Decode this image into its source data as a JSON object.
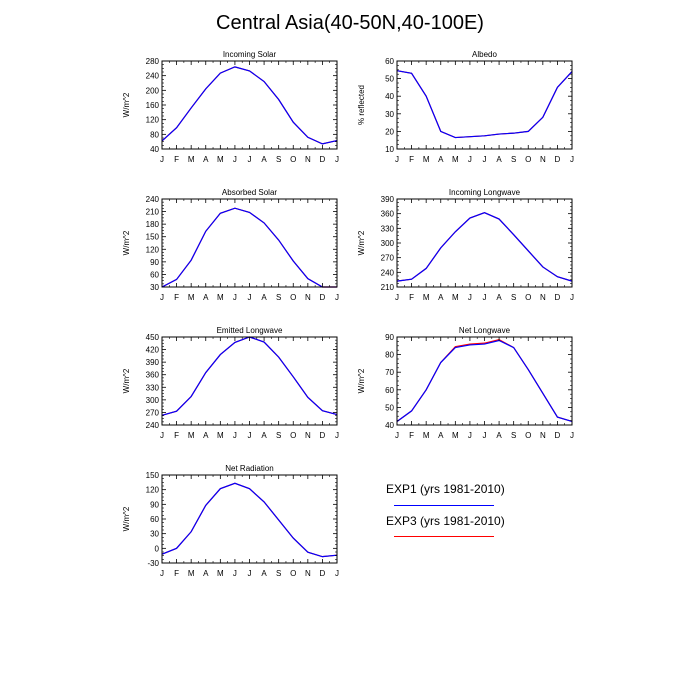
{
  "title": "Central Asia(40-50N,40-100E)",
  "months": [
    "J",
    "F",
    "M",
    "A",
    "M",
    "J",
    "J",
    "A",
    "S",
    "O",
    "N",
    "D",
    "J"
  ],
  "legend": {
    "items": [
      {
        "label": "EXP1 (yrs 1981-2010)",
        "color": "#0000ff"
      },
      {
        "label": "EXP3 (yrs 1981-2010)",
        "color": "#ff0000"
      }
    ]
  },
  "chart_data": [
    {
      "type": "line",
      "title": "Incoming Solar",
      "ylabel": "W/m^2",
      "ylim": [
        40,
        280
      ],
      "yticks": [
        40,
        80,
        120,
        160,
        200,
        240,
        280
      ],
      "series": [
        {
          "name": "EXP1 (yrs 1981-2010)",
          "values": [
            62,
            98,
            152,
            204,
            247,
            264,
            253,
            224,
            175,
            113,
            72,
            54,
            63
          ]
        },
        {
          "name": "EXP3 (yrs 1981-2010)",
          "values": [
            62,
            98,
            152,
            204,
            247,
            264,
            253,
            224,
            175,
            113,
            72,
            54,
            63
          ]
        }
      ]
    },
    {
      "type": "line",
      "title": "Albedo",
      "ylabel": "% reflected",
      "ylim": [
        10,
        60
      ],
      "yticks": [
        10,
        20,
        30,
        40,
        50,
        60
      ],
      "series": [
        {
          "name": "EXP1 (yrs 1981-2010)",
          "values": [
            54.5,
            53,
            40,
            20,
            16.5,
            17,
            17.5,
            18.5,
            19,
            20,
            28,
            45,
            54
          ]
        },
        {
          "name": "EXP3 (yrs 1981-2010)",
          "values": [
            54.5,
            53,
            40,
            20,
            16.5,
            17,
            17.5,
            18.5,
            19,
            20,
            28,
            45,
            54
          ]
        }
      ]
    },
    {
      "type": "line",
      "title": "Absorbed Solar",
      "ylabel": "W/m^2",
      "ylim": [
        30,
        240
      ],
      "yticks": [
        30,
        60,
        90,
        120,
        150,
        180,
        210,
        240
      ],
      "series": [
        {
          "name": "EXP1 (yrs 1981-2010)",
          "values": [
            30,
            48,
            94,
            163,
            206,
            218,
            208,
            183,
            142,
            92,
            50,
            30,
            30
          ]
        },
        {
          "name": "EXP3 (yrs 1981-2010)",
          "values": [
            30,
            48,
            94,
            163,
            206,
            218,
            208,
            183,
            142,
            92,
            50,
            30,
            30
          ]
        }
      ]
    },
    {
      "type": "line",
      "title": "Incoming Longwave",
      "ylabel": "W/m^2",
      "ylim": [
        210,
        390
      ],
      "yticks": [
        210,
        240,
        270,
        300,
        330,
        360,
        390
      ],
      "series": [
        {
          "name": "EXP1 (yrs 1981-2010)",
          "values": [
            222,
            226,
            248,
            290,
            323,
            351,
            362,
            349,
            317,
            284,
            251,
            231,
            222
          ]
        },
        {
          "name": "EXP3 (yrs 1981-2010)",
          "values": [
            222,
            226,
            248,
            290,
            323,
            351,
            362,
            349,
            317,
            284,
            251,
            231,
            222
          ]
        }
      ]
    },
    {
      "type": "line",
      "title": "Emitted Longwave",
      "ylabel": "W/m^2",
      "ylim": [
        240,
        450
      ],
      "yticks": [
        240,
        270,
        300,
        330,
        360,
        390,
        420,
        450
      ],
      "series": [
        {
          "name": "EXP1 (yrs 1981-2010)",
          "values": [
            263,
            273,
            308,
            365,
            408,
            437,
            450,
            438,
            402,
            355,
            306,
            274,
            265
          ]
        },
        {
          "name": "EXP3 (yrs 1981-2010)",
          "values": [
            263,
            273,
            308,
            365,
            408,
            437,
            450,
            438,
            402,
            355,
            306,
            274,
            265
          ]
        }
      ]
    },
    {
      "type": "line",
      "title": "Net Longwave",
      "ylabel": "W/m^2",
      "ylim": [
        40,
        90
      ],
      "yticks": [
        40,
        50,
        60,
        70,
        80,
        90
      ],
      "series": [
        {
          "name": "EXP1 (yrs 1981-2010)",
          "values": [
            42,
            48,
            60,
            75.5,
            84,
            85.5,
            86,
            88,
            84,
            71.5,
            58,
            44.5,
            42
          ]
        },
        {
          "name": "EXP3 (yrs 1981-2010)",
          "values": [
            42,
            48,
            60,
            75.5,
            84.5,
            86,
            86.5,
            88.5,
            84,
            71.5,
            58,
            44.5,
            42
          ]
        }
      ]
    },
    {
      "type": "line",
      "title": "Net Radiation",
      "ylabel": "W/m^2",
      "ylim": [
        -30,
        150
      ],
      "yticks": [
        -30,
        0,
        30,
        60,
        90,
        120,
        150
      ],
      "series": [
        {
          "name": "EXP1 (yrs 1981-2010)",
          "values": [
            -12,
            0,
            34,
            88,
            122,
            133,
            122,
            95,
            58,
            21,
            -8,
            -17,
            -14
          ]
        },
        {
          "name": "EXP3 (yrs 1981-2010)",
          "values": [
            -12,
            0,
            34,
            88,
            122,
            133,
            122,
            95,
            58,
            21,
            -8,
            -17,
            -14
          ]
        }
      ]
    }
  ]
}
